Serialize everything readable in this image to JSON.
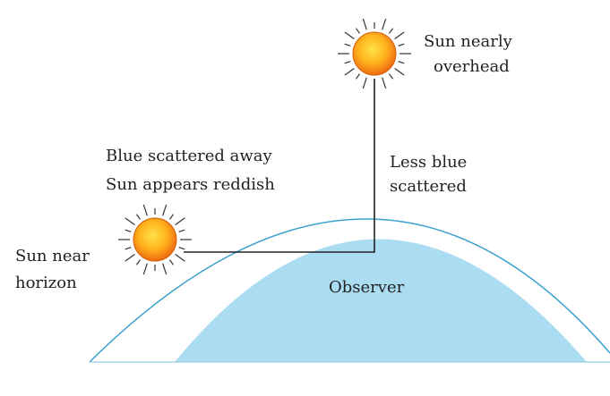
{
  "labels": {
    "sun_overhead": [
      "Sun nearly",
      "overhead"
    ],
    "less_blue": [
      "Less blue",
      "scattered"
    ],
    "blue_scattered": [
      "Blue scattered away",
      "Sun appears reddish"
    ],
    "sun_horizon": [
      "Sun near",
      "horizon"
    ],
    "observer": "Observer"
  }
}
